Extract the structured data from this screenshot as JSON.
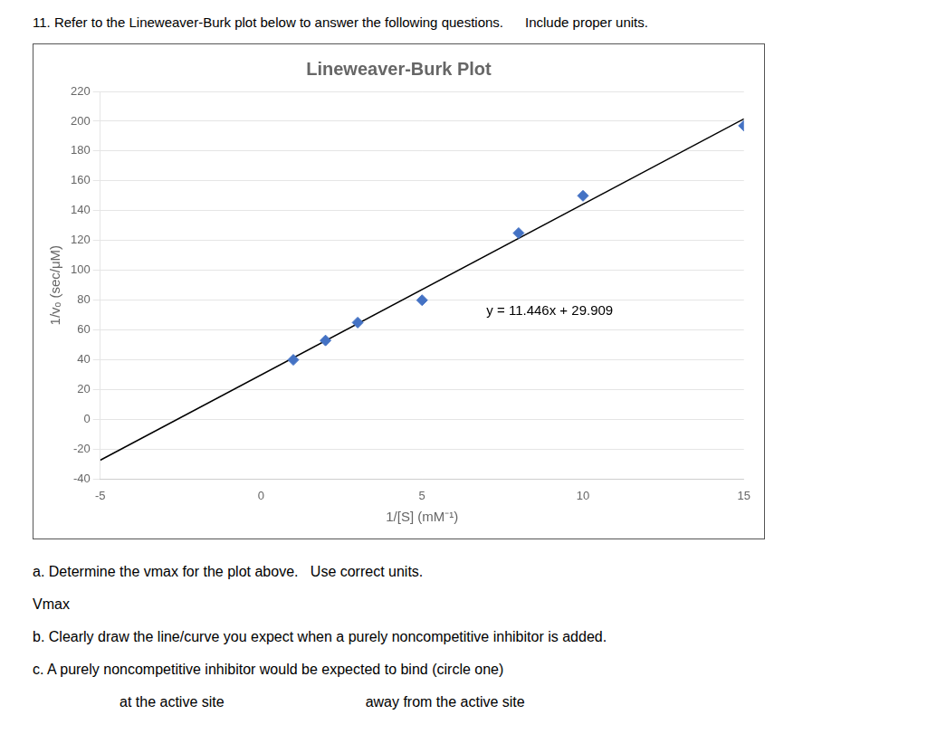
{
  "chart_data": {
    "type": "scatter",
    "title": "Lineweaver-Burk Plot",
    "xlabel": "1/[S] (mM⁻¹)",
    "ylabel": "1/vₒ (sec/μM)",
    "annotations": [
      "y = 11.446x + 29.909"
    ],
    "series": [
      {
        "type": "scatter",
        "marker": "diamond",
        "color": "#4472c4",
        "x": [
          1,
          2,
          3,
          5,
          8,
          10,
          15
        ],
        "values": [
          40,
          53,
          65,
          80,
          125,
          150,
          197
        ]
      },
      {
        "type": "line",
        "line_style": "solid",
        "color": "#000000",
        "x": [
          -5,
          15
        ],
        "values": [
          -27.321,
          201.599
        ]
      }
    ],
    "xlim": [
      -5,
      15
    ],
    "xticks": [
      -5,
      0,
      5,
      10,
      15
    ],
    "ylim": [
      -40,
      220
    ],
    "yticks": [
      -40,
      -20,
      0,
      20,
      40,
      60,
      80,
      100,
      120,
      140,
      160,
      180,
      200,
      220
    ],
    "grid": "y"
  },
  "heading": [
    "11. Refer to the Lineweaver-Burk plot below to answer the following questions.",
    "Include proper units."
  ],
  "questions": [
    [
      "a. Determine the vmax for the plot above.   Use correct units."
    ],
    [
      "Vmax"
    ],
    [
      "b. Clearly draw the line/curve you expect when a purely noncompetitive inhibitor is added."
    ],
    [
      "c. A purely noncompetitive inhibitor would be expected to bind (circle one)"
    ],
    [
      "at the active site",
      "away from the active site"
    ]
  ]
}
